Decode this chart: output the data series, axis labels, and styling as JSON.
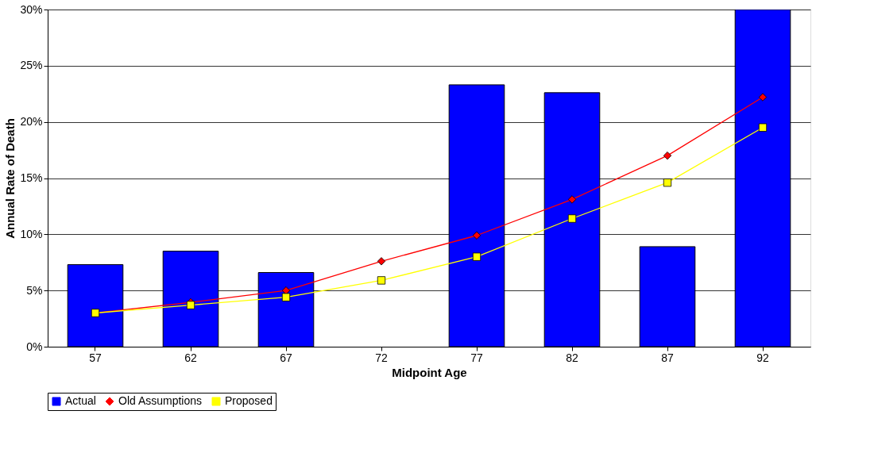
{
  "chart_data": {
    "type": "bar",
    "xlabel": "Midpoint Age",
    "ylabel": "Annual Rate of Death",
    "categories": [
      "57",
      "62",
      "67",
      "72",
      "77",
      "82",
      "87",
      "92"
    ],
    "series": [
      {
        "name": "Actual",
        "color": "#0000ff",
        "values": [
          7.3,
          8.5,
          6.6,
          null,
          23.3,
          22.6,
          8.9,
          30
        ]
      },
      {
        "name": "Old Assumptions",
        "type": "line",
        "marker": "diamond",
        "color": "#ff0000",
        "values": [
          3.0,
          3.95,
          5.0,
          7.6,
          9.9,
          13.1,
          17.0,
          22.2
        ]
      },
      {
        "name": "Proposed",
        "type": "line",
        "marker": "square",
        "color": "#ffff00",
        "values": [
          3.0,
          3.7,
          4.4,
          5.9,
          8.0,
          11.4,
          14.6,
          19.5
        ]
      }
    ],
    "ylim": [
      0,
      30
    ],
    "yticks": [
      {
        "value": 0,
        "label": "0%"
      },
      {
        "value": 5,
        "label": "5%"
      },
      {
        "value": 10,
        "label": "10%"
      },
      {
        "value": 15,
        "label": "15%"
      },
      {
        "value": 20,
        "label": "20%"
      },
      {
        "value": 25,
        "label": "25%"
      },
      {
        "value": 30,
        "label": "30%"
      }
    ],
    "grid": "y",
    "legend": "bottom"
  }
}
